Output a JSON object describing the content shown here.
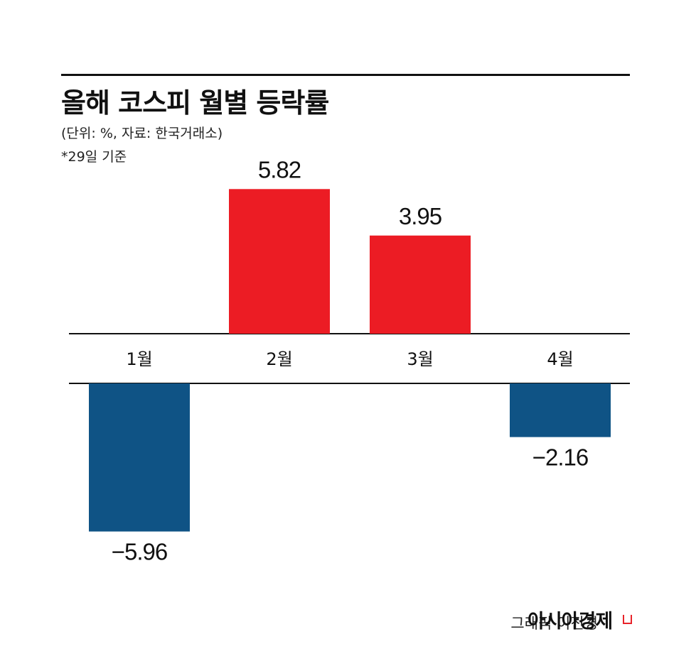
{
  "title": "올해 코스피 월별 등락률",
  "subtitle": "(단위: %, 자료: 한국거래소)",
  "note": "*29일 기준",
  "credit": "그래픽 이진경",
  "brand": "아시아경제",
  "colors": {
    "positive": "#ec1c24",
    "negative": "#0f5385"
  },
  "chart_data": {
    "type": "bar",
    "categories": [
      "1월",
      "2월",
      "3월",
      "4월"
    ],
    "values": [
      -5.96,
      5.82,
      3.95,
      -2.16
    ],
    "value_labels": [
      "−5.96",
      "5.82",
      "3.95",
      "−2.16"
    ],
    "title": "올해 코스피 월별 등락률",
    "xlabel": "",
    "ylabel": "",
    "grid": false,
    "legend": "none"
  }
}
